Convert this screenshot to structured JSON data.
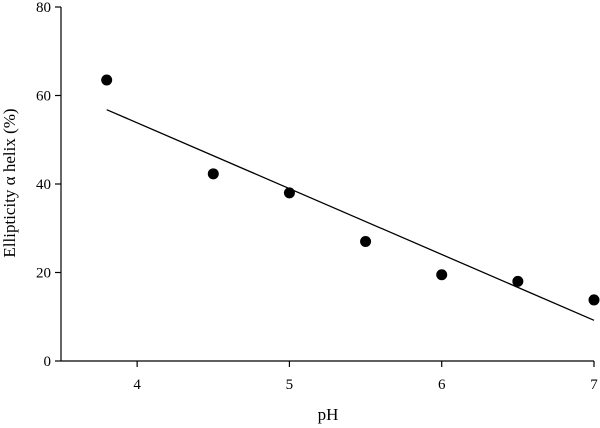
{
  "chart_data": {
    "type": "scatter",
    "title": "",
    "xlabel": "pH",
    "ylabel": "Ellipticity α helix (%)",
    "xlim": [
      3.5,
      7.0
    ],
    "ylim": [
      0,
      80
    ],
    "xticks": [
      4,
      5,
      6,
      7
    ],
    "yticks": [
      0,
      20,
      40,
      60,
      80
    ],
    "grid": false,
    "legend": "none",
    "colors": {
      "marker": "#000000",
      "line": "#000000",
      "axis": "#000000"
    },
    "series": [
      {
        "type": "scatter",
        "x": [
          3.8,
          4.5,
          5.0,
          5.5,
          6.0,
          6.5,
          7.0
        ],
        "y": [
          63.5,
          42.3,
          38.0,
          27.0,
          19.5,
          18.0,
          13.8
        ]
      },
      {
        "type": "line",
        "x": [
          3.8,
          7.0
        ],
        "y": [
          56.8,
          9.2
        ]
      }
    ]
  }
}
